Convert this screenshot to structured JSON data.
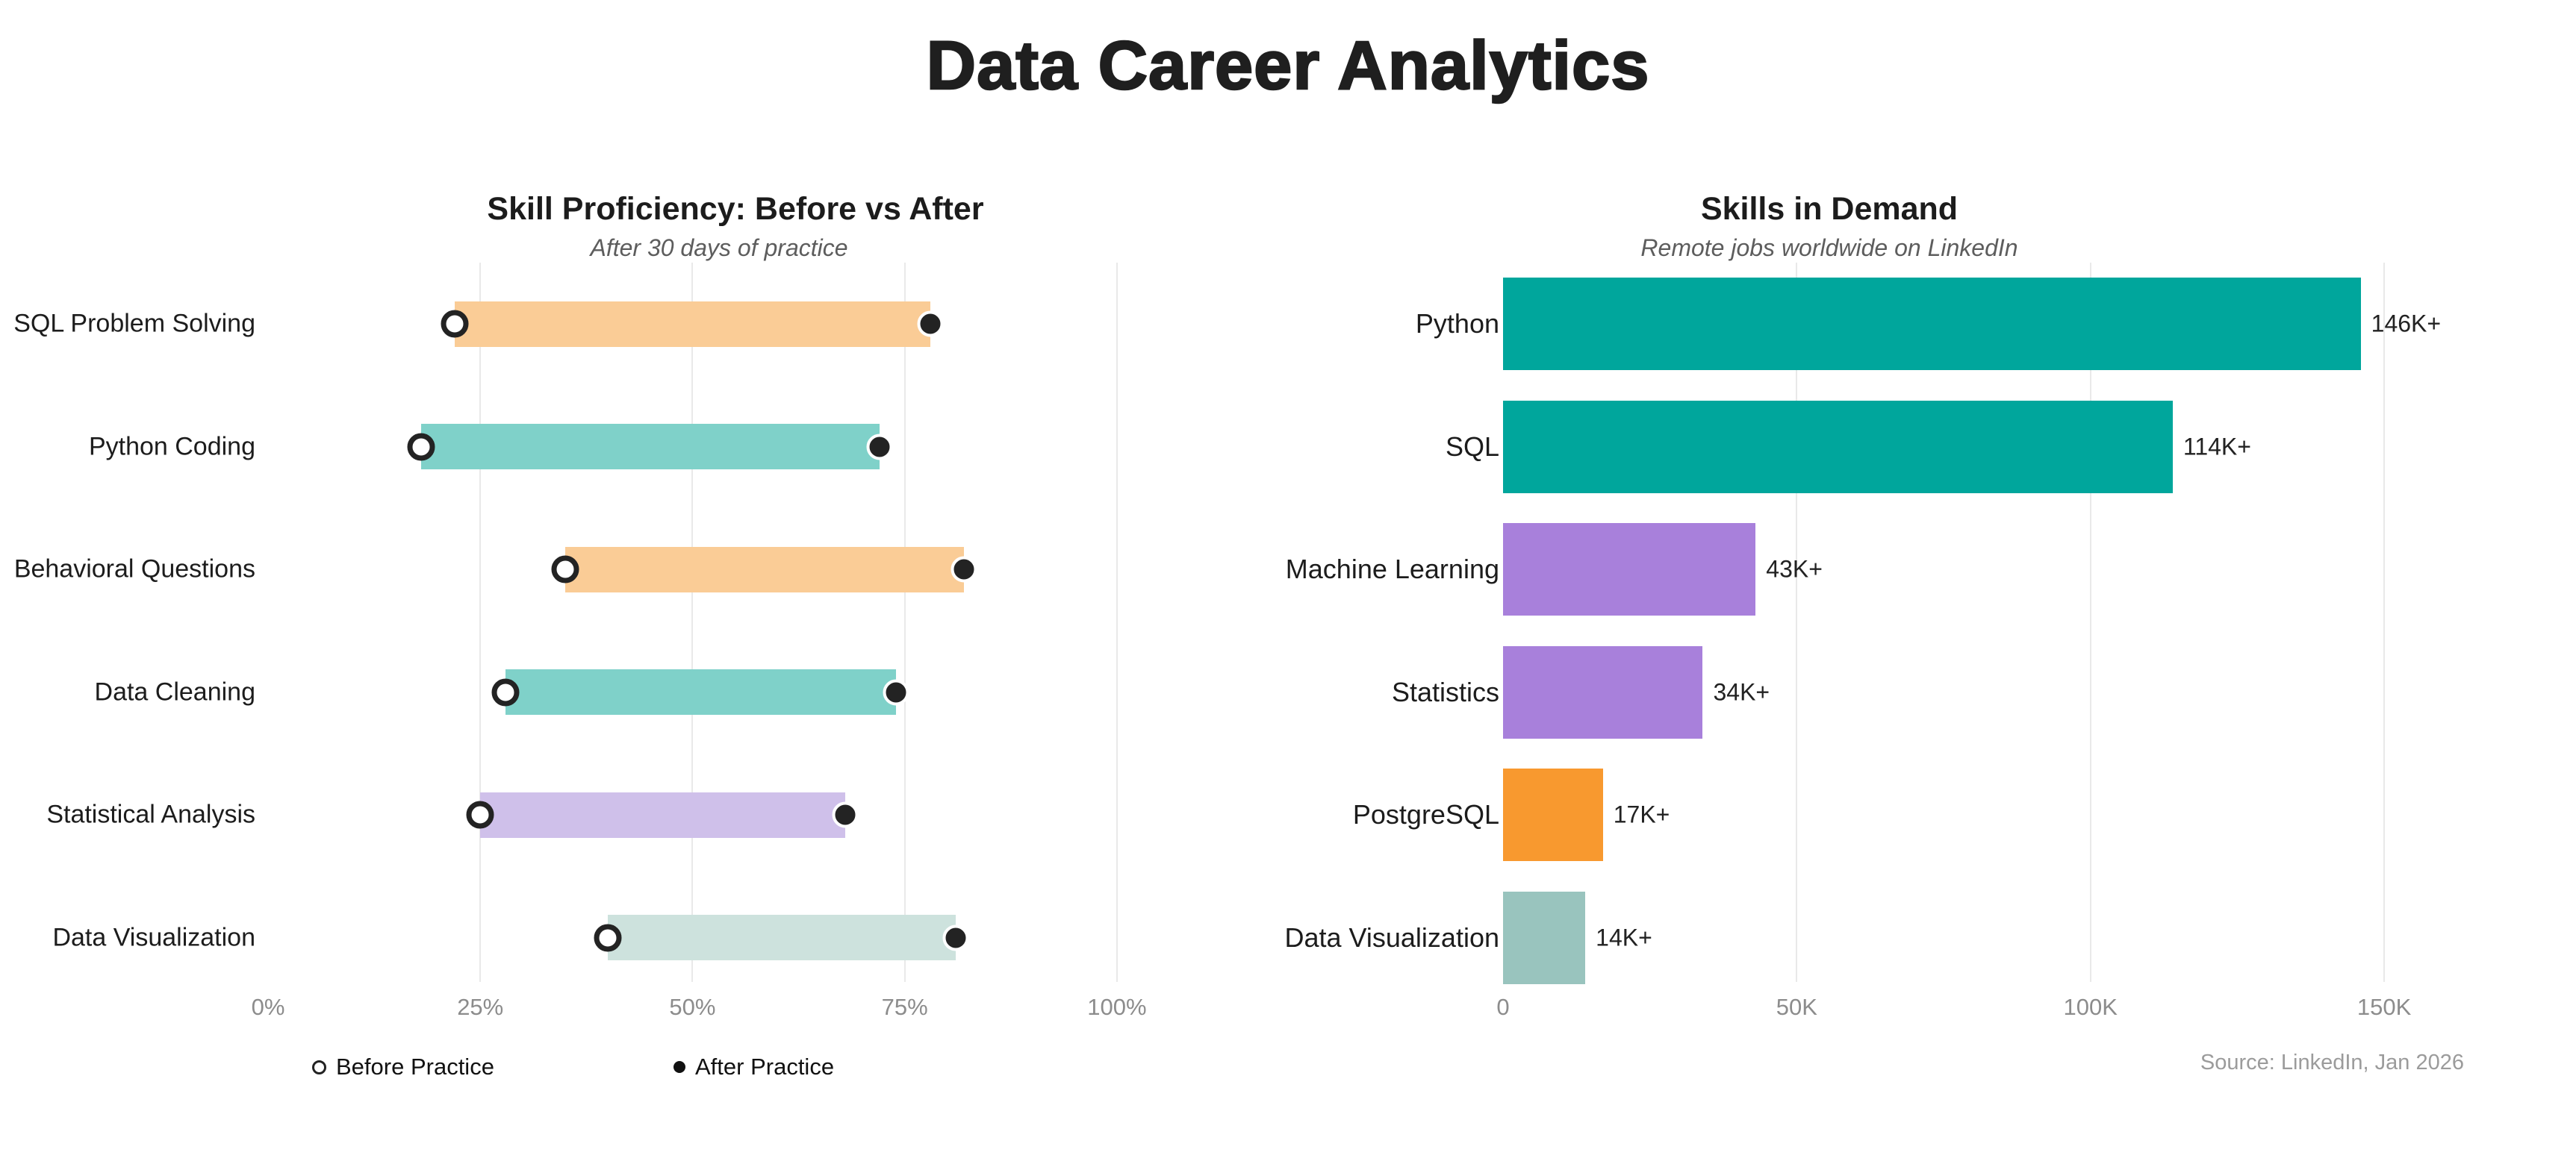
{
  "page": {
    "title": "Data Career Analytics"
  },
  "chart_data": [
    {
      "type": "dumbbell",
      "title": "Skill Proficiency: Before vs After",
      "subtitle": "After 30 days of practice",
      "categories": [
        "SQL Problem Solving",
        "Python Coding",
        "Behavioral Questions",
        "Data Cleaning",
        "Statistical Analysis",
        "Data Visualization"
      ],
      "series": [
        {
          "name": "Before Practice",
          "marker": "open-circle",
          "values": [
            22,
            18,
            35,
            28,
            25,
            40
          ]
        },
        {
          "name": "After Practice",
          "marker": "filled-circle",
          "values": [
            78,
            72,
            82,
            74,
            68,
            81
          ]
        }
      ],
      "bar_colors": [
        "#FACC96",
        "#7FD1C9",
        "#FACC96",
        "#7FD1C9",
        "#CFC0EA",
        "#CDE2DD"
      ],
      "xlim": [
        0,
        103
      ],
      "ticks": [
        {
          "value": 0,
          "label": "0%"
        },
        {
          "value": 25,
          "label": "25%"
        },
        {
          "value": 50,
          "label": "50%"
        },
        {
          "value": 75,
          "label": "75%"
        },
        {
          "value": 100,
          "label": "100%"
        }
      ],
      "grid_ticks": [
        25,
        50,
        75,
        100
      ],
      "legend_position": "bottom",
      "legend": [
        {
          "label": "Before Practice",
          "marker": "open-circle"
        },
        {
          "label": "After Practice",
          "marker": "filled-circle"
        }
      ]
    },
    {
      "type": "bar",
      "title": "Skills in Demand",
      "subtitle": "Remote jobs worldwide on LinkedIn",
      "categories": [
        "Python",
        "SQL",
        "Machine Learning",
        "Statistics",
        "PostgreSQL",
        "Data Visualization"
      ],
      "values": [
        146,
        114,
        43,
        34,
        17,
        14
      ],
      "value_labels": [
        "146K+",
        "114K+",
        "43K+",
        "34K+",
        "17K+",
        "14K+"
      ],
      "bar_colors": [
        "#00A69C",
        "#00A69C",
        "#A880DB",
        "#A880DB",
        "#F8992F",
        "#99C4BE"
      ],
      "xlim": [
        0,
        158.5
      ],
      "unit": "K",
      "ticks": [
        {
          "value": 0,
          "label": "0"
        },
        {
          "value": 50,
          "label": "50K"
        },
        {
          "value": 100,
          "label": "100K"
        },
        {
          "value": 150,
          "label": "150K"
        }
      ],
      "grid_ticks": [
        50,
        100,
        150
      ],
      "source": "Source: LinkedIn, Jan 2026"
    }
  ]
}
